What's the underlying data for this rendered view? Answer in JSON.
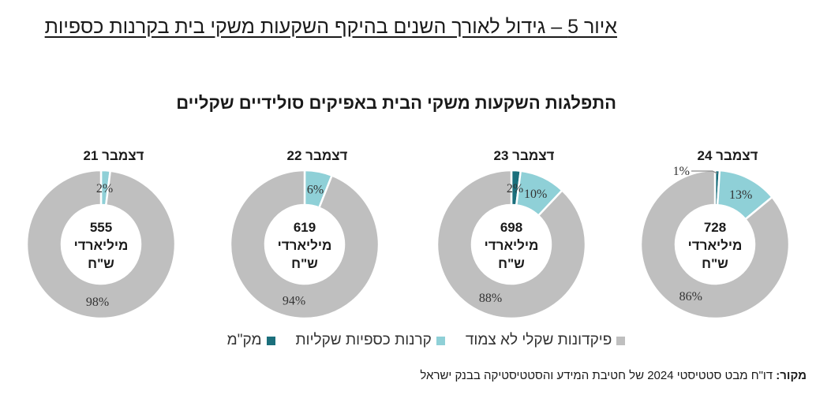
{
  "figure_title": "איור 5 – גידול לאורך השנים בהיקף השקעות משקי בית בקרנות כספיות",
  "chart_data": {
    "type": "pie",
    "title": "התפלגות השקעות משקי הבית באפיקים סולידיים שקליים",
    "series": [
      {
        "name": "מק\"מ",
        "color": "#1b6f7c"
      },
      {
        "name": "קרנות כספיות שקליות",
        "color": "#8fd0d7"
      },
      {
        "name": "פיקדונות שקלי לא צמוד",
        "color": "#bfbfbf"
      }
    ],
    "charts": [
      {
        "label": "דצמבר 21",
        "total": "555",
        "unit_line1": "מיליארדי",
        "unit_line2": "ש\"ח",
        "values": [
          0,
          2,
          98
        ],
        "labels": [
          "",
          "2%",
          "98%"
        ]
      },
      {
        "label": "דצמבר 22",
        "total": "619",
        "unit_line1": "מיליארדי",
        "unit_line2": "ש\"ח",
        "values": [
          0,
          6,
          94
        ],
        "labels": [
          "",
          "6%",
          "94%"
        ]
      },
      {
        "label": "דצמבר 23",
        "total": "698",
        "unit_line1": "מיליארדי",
        "unit_line2": "ש\"ח",
        "values": [
          2,
          10,
          88
        ],
        "labels": [
          "2%",
          "10%",
          "88%"
        ]
      },
      {
        "label": "דצמבר 24",
        "total": "728",
        "unit_line1": "מיליארדי",
        "unit_line2": "ש\"ח",
        "values": [
          1,
          13,
          86
        ],
        "labels": [
          "1%",
          "13%",
          "86%"
        ]
      }
    ],
    "legend_position": "bottom"
  },
  "source": {
    "label": "מקור:",
    "text": " דו\"ח מבט סטטיסטי 2024 של חטיבת המידע והסטטיסטיקה בבנק ישראל"
  }
}
